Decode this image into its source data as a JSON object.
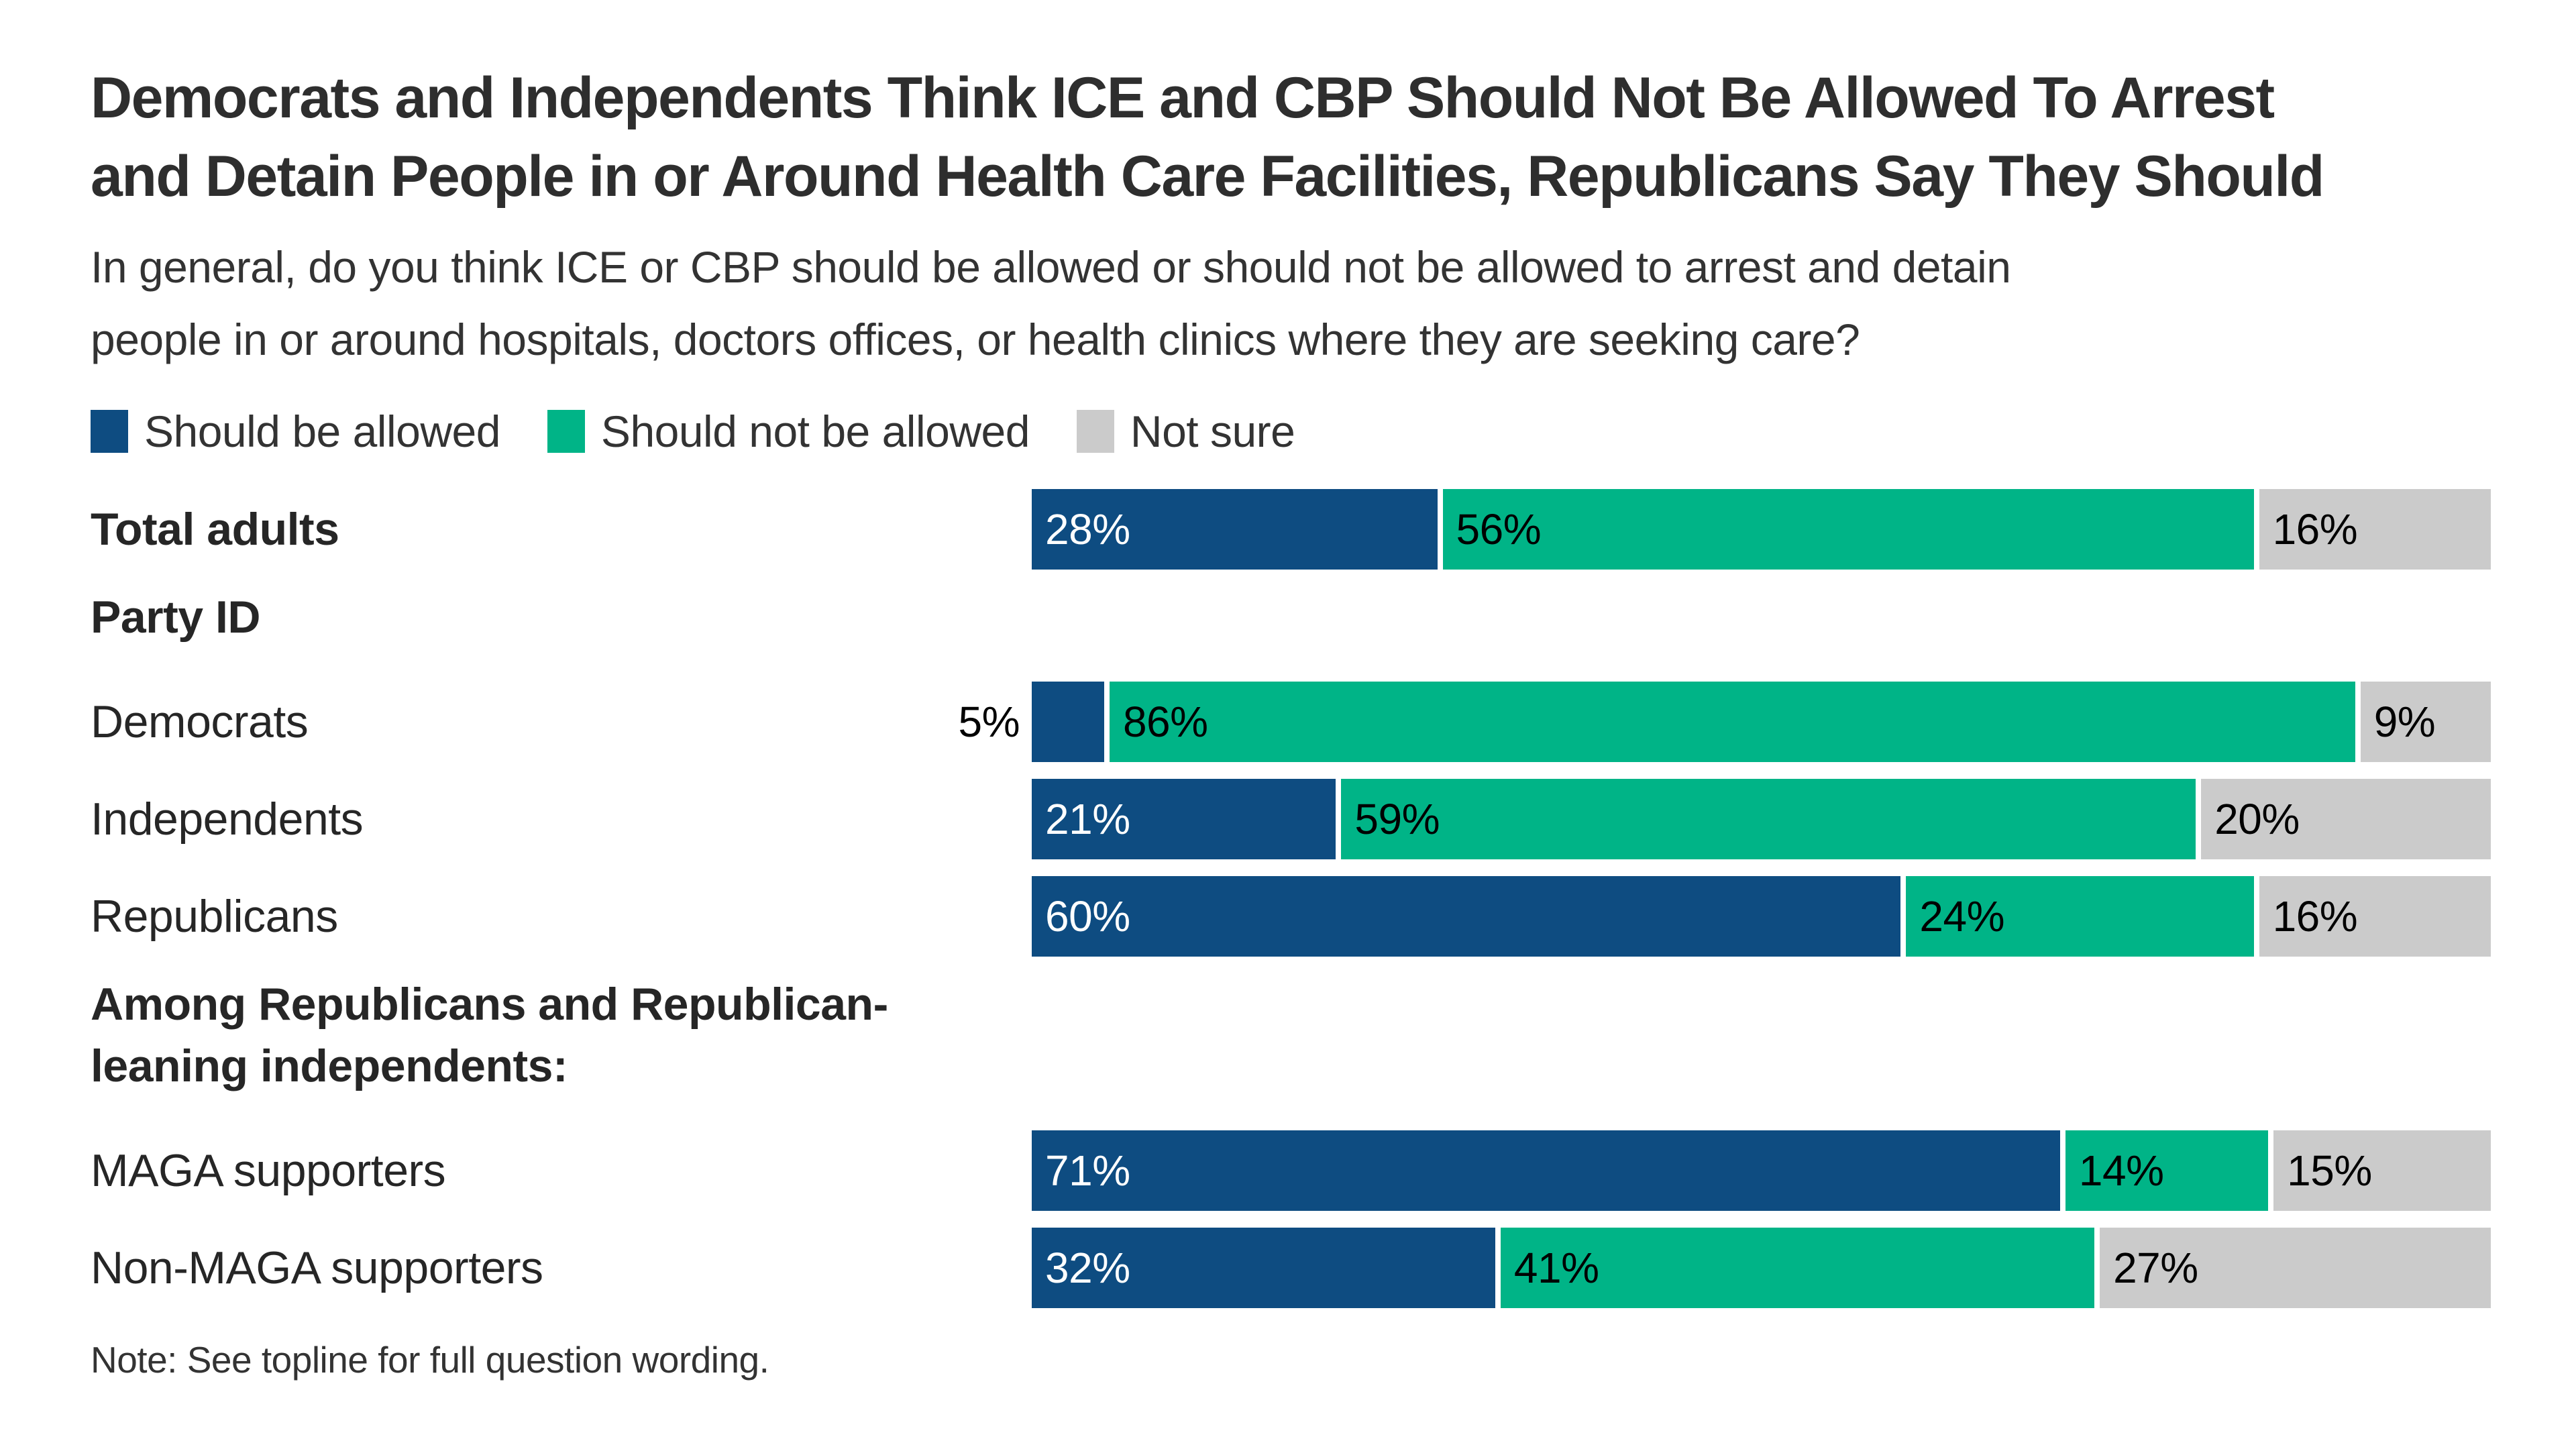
{
  "title": {
    "lines": [
      "Democrats and Independents Think ICE and CBP Should Not Be Allowed To Arrest",
      "and Detain People in or Around Health Care Facilities, Republicans Say They Should"
    ]
  },
  "subtitle": {
    "lines": [
      "In general, do you think ICE or CBP should be allowed or should not be allowed to arrest and detain",
      "people in or around hospitals, doctors offices, or health clinics where they are seeking care?"
    ]
  },
  "legend": {
    "items": [
      {
        "label": "Should be allowed",
        "color": "#0E4C81"
      },
      {
        "label": "Should not be allowed",
        "color": "#00B487"
      },
      {
        "label": "Not sure",
        "color": "#CBCBCB"
      }
    ]
  },
  "rows": [
    {
      "kind": "bar",
      "label": "Total adults",
      "bold": true,
      "segments": [
        {
          "value": 28,
          "label": "28%",
          "color": "#0E4C81",
          "label_color": "#FFFFFF",
          "label_position": "inside"
        },
        {
          "value": 56,
          "label": "56%",
          "color": "#00B487",
          "label_color": "#000000",
          "label_position": "inside"
        },
        {
          "value": 16,
          "label": "16%",
          "color": "#CBCBCB",
          "label_color": "#000000",
          "label_position": "inside"
        }
      ]
    },
    {
      "kind": "header",
      "label": "Party ID"
    },
    {
      "kind": "bar",
      "label": "Democrats",
      "bold": false,
      "segments": [
        {
          "value": 5,
          "label": "5%",
          "color": "#0E4C81",
          "label_color": "#000000",
          "label_position": "outside"
        },
        {
          "value": 86,
          "label": "86%",
          "color": "#00B487",
          "label_color": "#000000",
          "label_position": "inside"
        },
        {
          "value": 9,
          "label": "9%",
          "color": "#CBCBCB",
          "label_color": "#000000",
          "label_position": "inside"
        }
      ]
    },
    {
      "kind": "bar",
      "label": "Independents",
      "bold": false,
      "segments": [
        {
          "value": 21,
          "label": "21%",
          "color": "#0E4C81",
          "label_color": "#FFFFFF",
          "label_position": "inside"
        },
        {
          "value": 59,
          "label": "59%",
          "color": "#00B487",
          "label_color": "#000000",
          "label_position": "inside"
        },
        {
          "value": 20,
          "label": "20%",
          "color": "#CBCBCB",
          "label_color": "#000000",
          "label_position": "inside"
        }
      ]
    },
    {
      "kind": "bar",
      "label": "Republicans",
      "bold": false,
      "segments": [
        {
          "value": 60,
          "label": "60%",
          "color": "#0E4C81",
          "label_color": "#FFFFFF",
          "label_position": "inside"
        },
        {
          "value": 24,
          "label": "24%",
          "color": "#00B487",
          "label_color": "#000000",
          "label_position": "inside"
        },
        {
          "value": 16,
          "label": "16%",
          "color": "#CBCBCB",
          "label_color": "#000000",
          "label_position": "inside"
        }
      ]
    },
    {
      "kind": "header",
      "label": "Among Republicans and Republican-leaning independents:"
    },
    {
      "kind": "bar",
      "label": "MAGA supporters",
      "bold": false,
      "segments": [
        {
          "value": 71,
          "label": "71%",
          "color": "#0E4C81",
          "label_color": "#FFFFFF",
          "label_position": "inside"
        },
        {
          "value": 14,
          "label": "14%",
          "color": "#00B487",
          "label_color": "#000000",
          "label_position": "inside"
        },
        {
          "value": 15,
          "label": "15%",
          "color": "#CBCBCB",
          "label_color": "#000000",
          "label_position": "inside"
        }
      ]
    },
    {
      "kind": "bar",
      "label": "Non-MAGA supporters",
      "bold": false,
      "segments": [
        {
          "value": 32,
          "label": "32%",
          "color": "#0E4C81",
          "label_color": "#FFFFFF",
          "label_position": "inside"
        },
        {
          "value": 41,
          "label": "41%",
          "color": "#00B487",
          "label_color": "#000000",
          "label_position": "inside"
        },
        {
          "value": 27,
          "label": "27%",
          "color": "#CBCBCB",
          "label_color": "#000000",
          "label_position": "inside"
        }
      ]
    }
  ],
  "note": "Note: See topline for full question wording.",
  "colors": {
    "background": "#FFFFFF",
    "title_text": "#2E2E2E",
    "body_text": "#333333",
    "value_on_blue": "#FFFFFF",
    "value_on_green": "#000000",
    "value_on_gray": "#000000"
  },
  "chart_data": {
    "type": "bar",
    "orientation": "horizontal",
    "stacked": true,
    "title": "Democrats and Independents Think ICE and CBP Should Not Be Allowed To Arrest and Detain People in or Around Health Care Facilities, Republicans Say They Should",
    "subtitle": "In general, do you think ICE or CBP should be allowed or should not be allowed to arrest and detain people in or around hospitals, doctors offices, or health clinics where they are seeking care?",
    "categories": [
      "Total adults",
      "Democrats",
      "Independents",
      "Republicans",
      "MAGA supporters",
      "Non-MAGA supporters"
    ],
    "category_groups": [
      {
        "header": "Party ID",
        "members": [
          "Democrats",
          "Independents",
          "Republicans"
        ]
      },
      {
        "header": "Among Republicans and Republican-leaning independents:",
        "members": [
          "MAGA supporters",
          "Non-MAGA supporters"
        ]
      }
    ],
    "series": [
      {
        "name": "Should be allowed",
        "color": "#0E4C81",
        "values": [
          28,
          5,
          21,
          60,
          71,
          32
        ]
      },
      {
        "name": "Should not be allowed",
        "color": "#00B487",
        "values": [
          56,
          86,
          59,
          24,
          14,
          41
        ]
      },
      {
        "name": "Not sure",
        "color": "#CBCBCB",
        "values": [
          16,
          9,
          20,
          16,
          15,
          27
        ]
      }
    ],
    "xlim": [
      0,
      100
    ],
    "value_suffix": "%",
    "grid": false,
    "legend_position": "top",
    "data_labels": true,
    "note": "Note: See topline for full question wording."
  }
}
